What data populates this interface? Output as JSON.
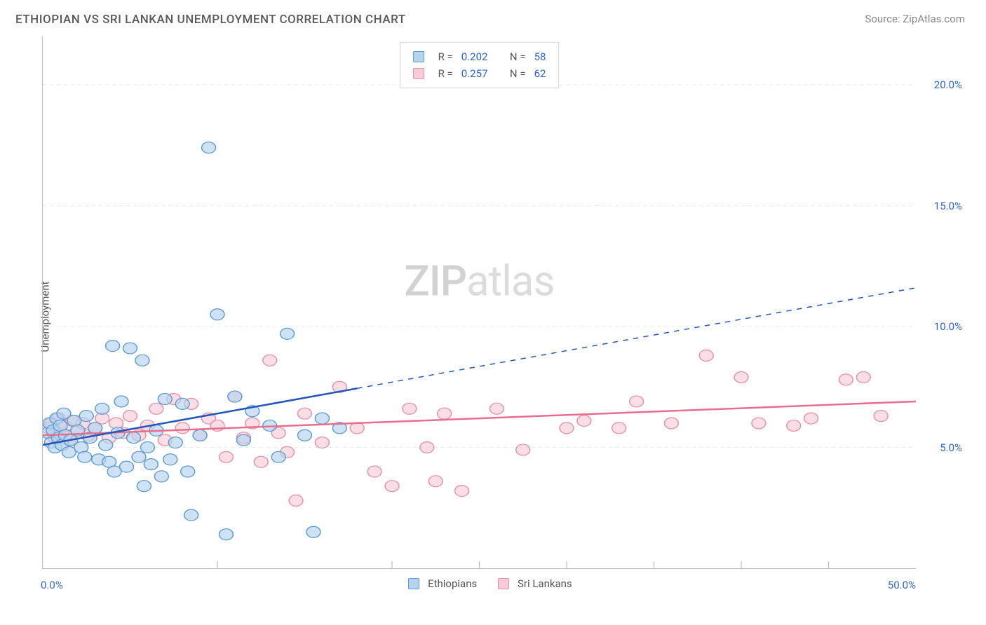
{
  "title": "ETHIOPIAN VS SRI LANKAN UNEMPLOYMENT CORRELATION CHART",
  "source": "Source: ZipAtlas.com",
  "watermark_a": "ZIP",
  "watermark_b": "atlas",
  "chart": {
    "type": "scatter",
    "ylabel": "Unemployment",
    "xlim": [
      0,
      50
    ],
    "ylim": [
      0,
      22
    ],
    "x_start_label": "0.0%",
    "x_end_label": "50.0%",
    "x_ticks": [
      10,
      20,
      25,
      30,
      35,
      40,
      45
    ],
    "y_ticks": [
      {
        "v": 5,
        "label": "5.0%"
      },
      {
        "v": 10,
        "label": "10.0%"
      },
      {
        "v": 15,
        "label": "15.0%"
      },
      {
        "v": 20,
        "label": "20.0%"
      }
    ],
    "background_color": "#ffffff",
    "grid_color": "#e8e8e8",
    "marker_radius": 8,
    "series": [
      {
        "name": "Ethiopians",
        "color_fill": "#b6d3f0",
        "color_stroke": "#5b9bd5",
        "stats": {
          "R": "0.202",
          "N": "58"
        },
        "trend": {
          "x0": 0,
          "y0": 5.1,
          "x_solid_end": 18,
          "x_dash_end": 50,
          "y_end": 11.6,
          "color": "#2456b6"
        },
        "points": [
          [
            0.3,
            5.6
          ],
          [
            0.4,
            6.0
          ],
          [
            0.5,
            5.2
          ],
          [
            0.6,
            5.7
          ],
          [
            0.7,
            5.0
          ],
          [
            0.8,
            6.2
          ],
          [
            0.9,
            5.4
          ],
          [
            1.0,
            5.9
          ],
          [
            1.1,
            5.1
          ],
          [
            1.2,
            6.4
          ],
          [
            1.3,
            5.5
          ],
          [
            1.5,
            4.8
          ],
          [
            1.6,
            5.3
          ],
          [
            1.8,
            6.1
          ],
          [
            2.0,
            5.7
          ],
          [
            2.2,
            5.0
          ],
          [
            2.4,
            4.6
          ],
          [
            2.5,
            6.3
          ],
          [
            2.7,
            5.4
          ],
          [
            3.0,
            5.8
          ],
          [
            3.2,
            4.5
          ],
          [
            3.4,
            6.6
          ],
          [
            3.6,
            5.1
          ],
          [
            3.8,
            4.4
          ],
          [
            4.0,
            9.2
          ],
          [
            4.1,
            4.0
          ],
          [
            4.3,
            5.6
          ],
          [
            4.5,
            6.9
          ],
          [
            4.8,
            4.2
          ],
          [
            5.0,
            9.1
          ],
          [
            5.2,
            5.4
          ],
          [
            5.5,
            4.6
          ],
          [
            5.7,
            8.6
          ],
          [
            5.8,
            3.4
          ],
          [
            6.0,
            5.0
          ],
          [
            6.2,
            4.3
          ],
          [
            6.5,
            5.7
          ],
          [
            6.8,
            3.8
          ],
          [
            7.0,
            7.0
          ],
          [
            7.3,
            4.5
          ],
          [
            7.6,
            5.2
          ],
          [
            8.0,
            6.8
          ],
          [
            8.3,
            4.0
          ],
          [
            8.5,
            2.2
          ],
          [
            9.0,
            5.5
          ],
          [
            9.5,
            17.4
          ],
          [
            10.0,
            10.5
          ],
          [
            10.5,
            1.4
          ],
          [
            11.0,
            7.1
          ],
          [
            11.5,
            5.3
          ],
          [
            12.0,
            6.5
          ],
          [
            13.0,
            5.9
          ],
          [
            13.5,
            4.6
          ],
          [
            14.0,
            9.7
          ],
          [
            15.0,
            5.5
          ],
          [
            15.5,
            1.5
          ],
          [
            16.0,
            6.2
          ],
          [
            17.0,
            5.8
          ]
        ]
      },
      {
        "name": "Sri Lankans",
        "color_fill": "#f7cdd7",
        "color_stroke": "#e88fa5",
        "stats": {
          "R": "0.257",
          "N": "62"
        },
        "trend": {
          "x0": 0,
          "y0": 5.5,
          "x_solid_end": 50,
          "x_dash_end": 50,
          "y_end": 6.9,
          "color": "#e96d8c"
        },
        "points": [
          [
            0.3,
            5.8
          ],
          [
            0.5,
            6.0
          ],
          [
            0.7,
            5.4
          ],
          [
            0.9,
            6.2
          ],
          [
            1.1,
            5.6
          ],
          [
            1.3,
            5.9
          ],
          [
            1.5,
            5.3
          ],
          [
            1.7,
            6.1
          ],
          [
            2.0,
            5.7
          ],
          [
            2.3,
            6.0
          ],
          [
            2.6,
            5.5
          ],
          [
            3.0,
            5.8
          ],
          [
            3.4,
            6.2
          ],
          [
            3.8,
            5.4
          ],
          [
            4.2,
            6.0
          ],
          [
            4.6,
            5.6
          ],
          [
            5.0,
            6.3
          ],
          [
            5.5,
            5.5
          ],
          [
            6.0,
            5.9
          ],
          [
            6.5,
            6.6
          ],
          [
            7.0,
            5.3
          ],
          [
            7.5,
            7.0
          ],
          [
            8.0,
            5.8
          ],
          [
            8.5,
            6.8
          ],
          [
            9.0,
            5.5
          ],
          [
            9.5,
            6.2
          ],
          [
            10.0,
            5.9
          ],
          [
            10.5,
            4.6
          ],
          [
            11.0,
            7.1
          ],
          [
            11.5,
            5.4
          ],
          [
            12.0,
            6.0
          ],
          [
            12.5,
            4.4
          ],
          [
            13.0,
            8.6
          ],
          [
            13.5,
            5.6
          ],
          [
            14.0,
            4.8
          ],
          [
            14.5,
            2.8
          ],
          [
            15.0,
            6.4
          ],
          [
            16.0,
            5.2
          ],
          [
            17.0,
            7.5
          ],
          [
            18.0,
            5.8
          ],
          [
            19.0,
            4.0
          ],
          [
            20.0,
            3.4
          ],
          [
            21.0,
            6.6
          ],
          [
            22.0,
            5.0
          ],
          [
            22.5,
            3.6
          ],
          [
            23.0,
            6.4
          ],
          [
            24.0,
            3.2
          ],
          [
            26.0,
            6.6
          ],
          [
            27.5,
            4.9
          ],
          [
            30.0,
            5.8
          ],
          [
            31.0,
            6.1
          ],
          [
            33.0,
            5.8
          ],
          [
            34.0,
            6.9
          ],
          [
            36.0,
            6.0
          ],
          [
            38.0,
            8.8
          ],
          [
            40.0,
            7.9
          ],
          [
            41.0,
            6.0
          ],
          [
            43.0,
            5.9
          ],
          [
            44.0,
            6.2
          ],
          [
            46.0,
            7.8
          ],
          [
            47.0,
            7.9
          ],
          [
            48.0,
            6.3
          ]
        ]
      }
    ]
  },
  "legend": {
    "a": "Ethiopians",
    "b": "Sri Lankans"
  },
  "stat_labels": {
    "R": "R =",
    "N": "N ="
  }
}
